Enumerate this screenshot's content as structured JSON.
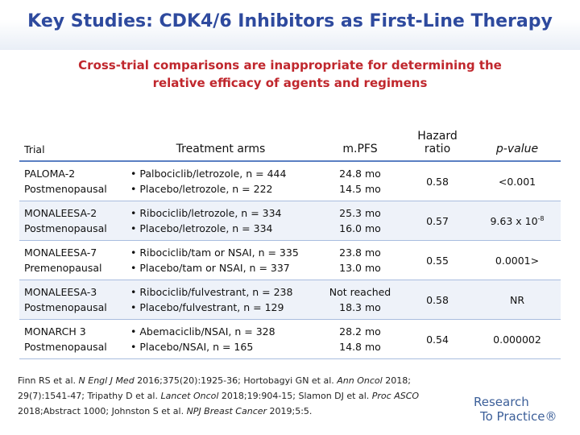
{
  "slide": {
    "title": "Key Studies: CDK4/6 Inhibitors as First-Line Therapy",
    "subtitle": [
      "Cross-trial comparisons are inappropriate for determining the",
      "relative efficacy of agents and regimens"
    ]
  },
  "table": {
    "headers": {
      "trial": "Trial",
      "arms": "Treatment arms",
      "mpfs": "m.PFS",
      "hr_line1": "Hazard",
      "hr_line2": "ratio",
      "pvalue": "p-value"
    },
    "rows": [
      {
        "trial": "PALOMA-2",
        "population": "Postmenopausal",
        "arm1": "• Palbociclib/letrozole, n = 444",
        "arm2": "• Placebo/letrozole, n = 222",
        "pfs1": "24.8 mo",
        "pfs2": "14.5 mo",
        "hr": "0.58",
        "p": "<0.001"
      },
      {
        "trial": "MONALEESA-2",
        "population": "Postmenopausal",
        "arm1": "• Ribociclib/letrozole, n = 334",
        "arm2": "• Placebo/letrozole, n = 334",
        "pfs1": "25.3 mo",
        "pfs2": "16.0 mo",
        "hr": "0.57",
        "p": "9.63 x 10",
        "p_exp": "-8"
      },
      {
        "trial": "MONALEESA-7",
        "population": "Premenopausal",
        "arm1": "• Ribociclib/tam or NSAI, n = 335",
        "arm2": "• Placebo/tam or NSAI, n = 337",
        "pfs1": "23.8 mo",
        "pfs2": "13.0 mo",
        "hr": "0.55",
        "p": "0.0001>"
      },
      {
        "trial": "MONALEESA-3",
        "population": "Postmenopausal",
        "arm1": "• Ribociclib/fulvestrant, n = 238",
        "arm2": "• Placebo/fulvestrant, n = 129",
        "pfs1": "Not reached",
        "pfs2": "18.3 mo",
        "hr": "0.58",
        "p": "NR"
      },
      {
        "trial": "MONARCH 3",
        "population": "Postmenopausal",
        "arm1": "• Abemaciclib/NSAI, n = 328",
        "arm2": "• Placebo/NSAI, n = 165",
        "pfs1": "28.2 mo",
        "pfs2": "14.8 mo",
        "hr": "0.54",
        "p": "0.000002"
      }
    ]
  },
  "references": {
    "l1a": "Finn RS et al. ",
    "l1b": "N Engl J Med",
    "l1c": " 2016;375(20):1925-36; Hortobagyi GN et al. ",
    "l1d": "Ann Oncol",
    "l1e": " 2018;",
    "l2a": "29(7):1541-47; Tripathy D et al. ",
    "l2b": "Lancet Oncol",
    "l2c": " 2018;19:904-15; Slamon DJ et al. ",
    "l2d": "Proc ASCO",
    "l3a": "2018;Abstract 1000; Johnston S et al. ",
    "l3b": "NPJ Breast Cancer",
    "l3c": " 2019;5:5."
  },
  "logo": {
    "line1": "Research",
    "line2": "To Practice®"
  }
}
